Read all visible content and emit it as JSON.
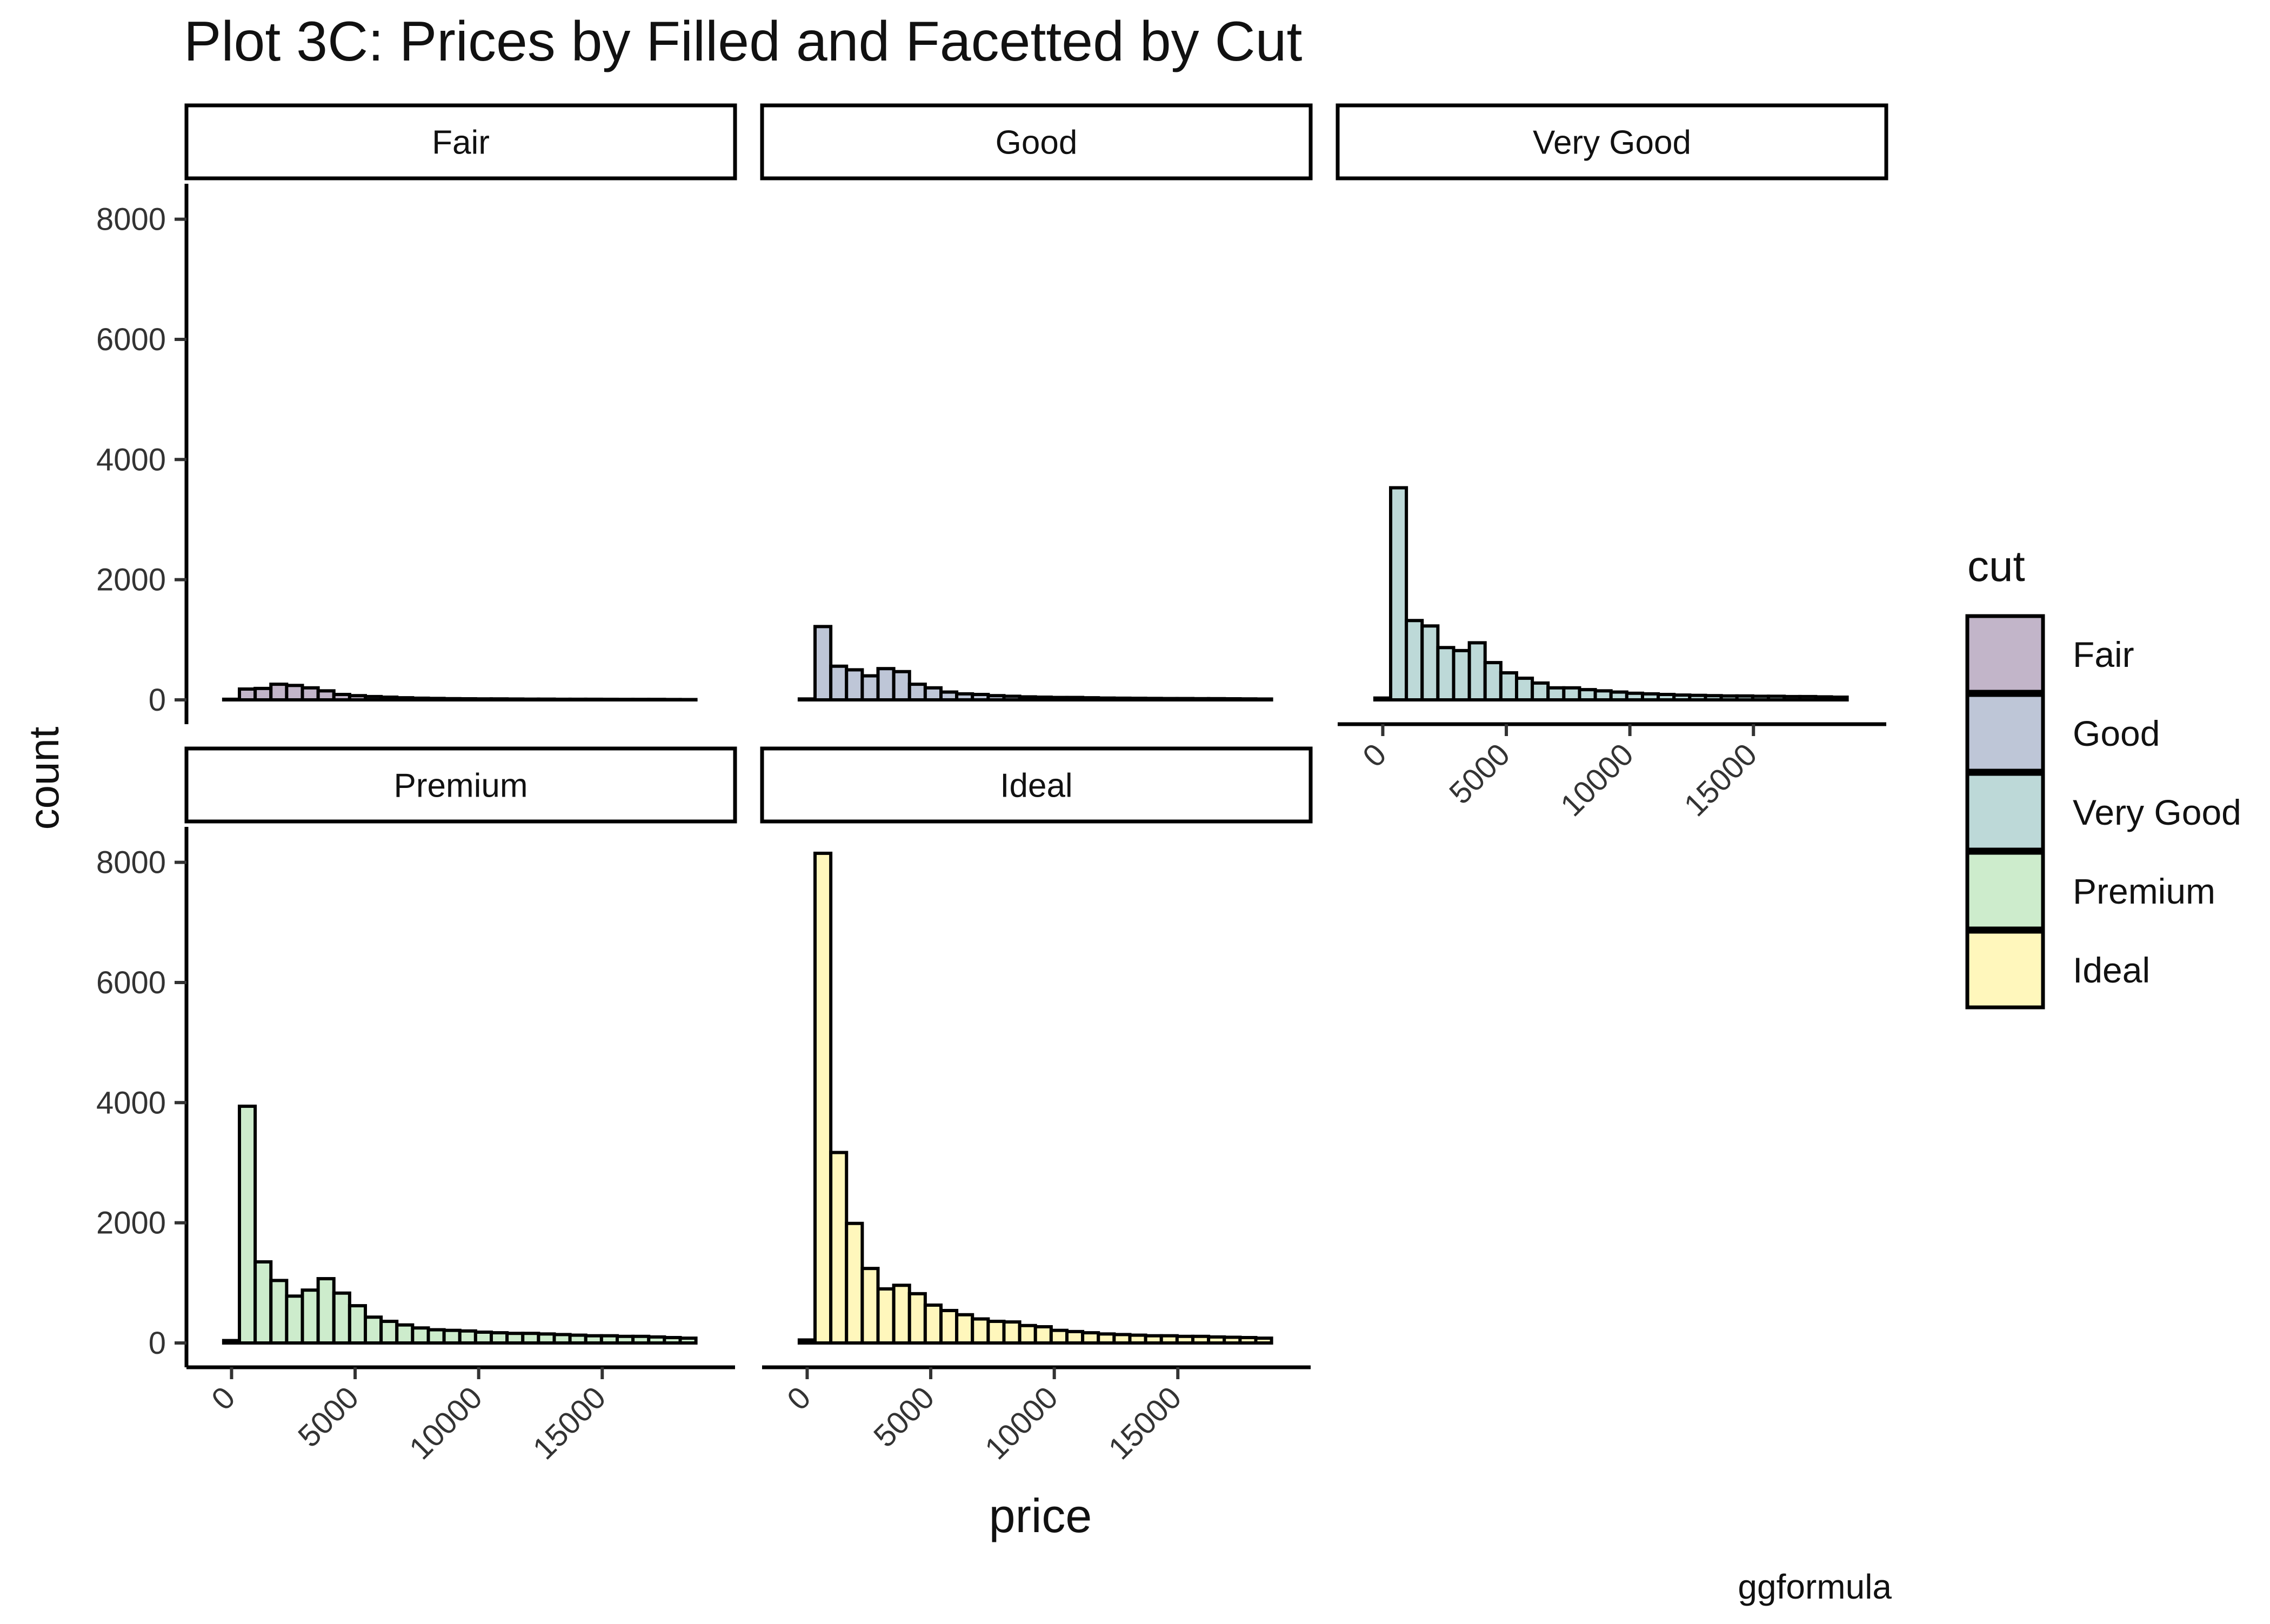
{
  "chart_data": {
    "type": "bar",
    "title": "Plot 3C: Prices by Filled and Facetted by Cut",
    "xlabel": "price",
    "ylabel": "count",
    "caption": "ggformula",
    "xlim": [
      -950,
      19500
    ],
    "ylim": [
      0,
      8500
    ],
    "x_ticks": [
      0,
      5000,
      10000,
      15000
    ],
    "x_tick_labels": [
      "0",
      "5000",
      "10000",
      "15000"
    ],
    "y_ticks": [
      0,
      2000,
      4000,
      6000,
      8000
    ],
    "y_tick_labels": [
      "0",
      "2000",
      "4000",
      "6000",
      "8000"
    ],
    "bin_width": 637,
    "bin_centers": [
      0,
      637,
      1274,
      1911,
      2548,
      3185,
      3822,
      4459,
      5096,
      5733,
      6370,
      7007,
      7644,
      8281,
      8918,
      9555,
      10192,
      10829,
      11466,
      12103,
      12740,
      13377,
      14014,
      14651,
      15288,
      15925,
      16562,
      17199,
      17836,
      18473
    ],
    "legend": {
      "title": "cut",
      "entries": [
        "Fair",
        "Good",
        "Very Good",
        "Premium",
        "Ideal"
      ],
      "placement": "right"
    },
    "series": [
      {
        "name": "Fair",
        "color": "#c2b5c9",
        "values": [
          10,
          180,
          190,
          260,
          240,
          200,
          150,
          90,
          70,
          55,
          45,
          35,
          28,
          24,
          20,
          18,
          16,
          16,
          14,
          12,
          12,
          10,
          10,
          10,
          9,
          8,
          8,
          8,
          6,
          5
        ]
      },
      {
        "name": "Good",
        "color": "#bec6d7",
        "values": [
          15,
          1220,
          560,
          500,
          400,
          520,
          470,
          260,
          200,
          130,
          100,
          90,
          70,
          60,
          50,
          45,
          40,
          40,
          35,
          30,
          28,
          26,
          24,
          22,
          22,
          20,
          20,
          18,
          16,
          14
        ]
      },
      {
        "name": "Very Good",
        "color": "#bdd9d8",
        "values": [
          30,
          3530,
          1320,
          1230,
          870,
          820,
          950,
          620,
          450,
          360,
          280,
          200,
          200,
          170,
          150,
          130,
          110,
          100,
          90,
          80,
          75,
          70,
          65,
          65,
          60,
          60,
          55,
          55,
          50,
          45
        ]
      },
      {
        "name": "Premium",
        "color": "#cdeccc",
        "values": [
          40,
          3940,
          1350,
          1040,
          780,
          880,
          1070,
          830,
          620,
          430,
          360,
          300,
          250,
          220,
          210,
          200,
          180,
          170,
          160,
          160,
          150,
          140,
          130,
          120,
          120,
          110,
          110,
          100,
          90,
          80
        ]
      },
      {
        "name": "Ideal",
        "color": "#fff7bc",
        "values": [
          50,
          8150,
          3170,
          1990,
          1240,
          900,
          960,
          820,
          630,
          540,
          470,
          400,
          360,
          350,
          290,
          270,
          210,
          190,
          170,
          150,
          140,
          130,
          120,
          120,
          110,
          110,
          100,
          95,
          90,
          80
        ]
      }
    ]
  }
}
